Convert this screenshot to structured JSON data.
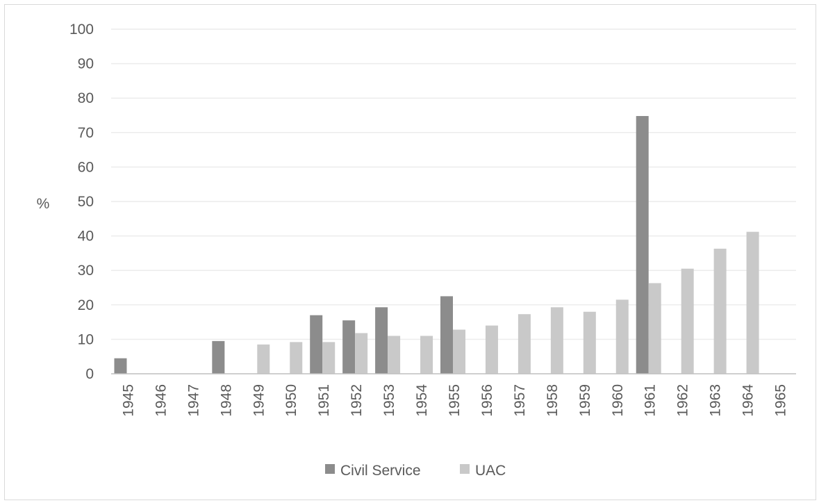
{
  "chart_data": {
    "type": "bar",
    "ylabel": "%",
    "ylim": [
      0,
      100
    ],
    "yticks": [
      "0",
      "10",
      "20",
      "30",
      "40",
      "50",
      "60",
      "70",
      "80",
      "90",
      "100"
    ],
    "categories": [
      "1945",
      "1946",
      "1947",
      "1948",
      "1949",
      "1950",
      "1951",
      "1952",
      "1953",
      "1954",
      "1955",
      "1956",
      "1957",
      "1958",
      "1959",
      "1960",
      "1961",
      "1962",
      "1963",
      "1964",
      "1965"
    ],
    "series": [
      {
        "name": "Civil Service",
        "color": "#8c8c8c",
        "values": [
          4.5,
          null,
          null,
          9.5,
          null,
          null,
          17,
          15.5,
          19.3,
          null,
          22.5,
          null,
          null,
          null,
          null,
          null,
          74.8,
          null,
          null,
          null,
          null
        ]
      },
      {
        "name": "UAC",
        "color": "#c9c9c9",
        "values": [
          null,
          null,
          null,
          null,
          8.5,
          9.2,
          9.2,
          11.8,
          11,
          11,
          12.8,
          14,
          17.3,
          19.3,
          18,
          21.5,
          26.3,
          30.5,
          36.3,
          41.2,
          null
        ]
      }
    ],
    "grid": true,
    "legend_position": "bottom"
  }
}
